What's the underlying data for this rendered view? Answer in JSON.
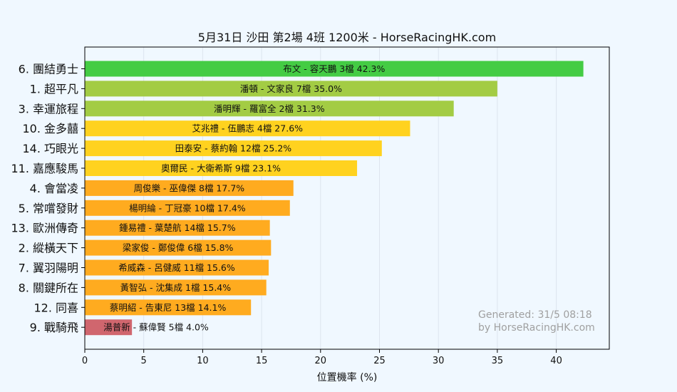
{
  "chart_data": {
    "type": "bar",
    "orientation": "horizontal",
    "title": "5月31日  沙田  第2場  4班  1200米 - HorseRacingHK.com",
    "xlabel": "位置機率 (%)",
    "ylabel": "",
    "xlim": [
      0,
      44.5
    ],
    "xticks": [
      0,
      5,
      10,
      15,
      20,
      25,
      30,
      35,
      40
    ],
    "grid": "vertical",
    "watermark": [
      "Generated: 31/5 08:18",
      "by HorseRacingHK.com"
    ],
    "categories": [
      "6. 團結勇士",
      "1. 超平凡",
      "3. 幸運旅程",
      "10. 金多囍",
      "14. 巧眼光",
      "11. 嘉應駿馬",
      "4. 會當凌",
      "5. 常嚐發財",
      "13. 歐洲傳奇",
      "2. 縱橫天下",
      "7. 翼羽陽明",
      "8. 關鍵所在",
      "12. 同喜",
      "9. 戰騎飛"
    ],
    "values": [
      42.3,
      35.0,
      31.3,
      27.6,
      25.2,
      23.1,
      17.7,
      17.4,
      15.7,
      15.8,
      15.6,
      15.4,
      14.1,
      4.0
    ],
    "labels": [
      "布文 - 容天鵬 3檔  42.3%",
      "潘頓 - 文家良 7檔  35.0%",
      "潘明輝 - 羅富全 2檔  31.3%",
      "艾兆禮 - 伍鵬志 4檔  27.6%",
      "田泰安 - 蔡約翰 12檔  25.2%",
      "奧爾民 - 大衛希斯 9檔  23.1%",
      "周俊樂 - 巫偉傑 8檔  17.7%",
      "楊明綸 - 丁冠豪 10檔  17.4%",
      "鍾易禮 - 葉楚航 14檔  15.7%",
      "梁家俊 - 鄭俊偉 6檔  15.8%",
      "希威森 - 呂健威 11檔  15.6%",
      "黃智弘 - 沈集成 1檔  15.4%",
      "蔡明紹 - 告東尼 13檔  14.1%",
      "湯普新 - 蘇偉賢 5檔  4.0%"
    ],
    "colors": [
      "#44cc44",
      "#a3cc44",
      "#a3cc44",
      "#ffd21f",
      "#ffd21f",
      "#ffd21f",
      "#ffab1f",
      "#ffab1f",
      "#ffab1f",
      "#ffab1f",
      "#ffab1f",
      "#ffab1f",
      "#ffab1f",
      "#d0666e"
    ]
  }
}
